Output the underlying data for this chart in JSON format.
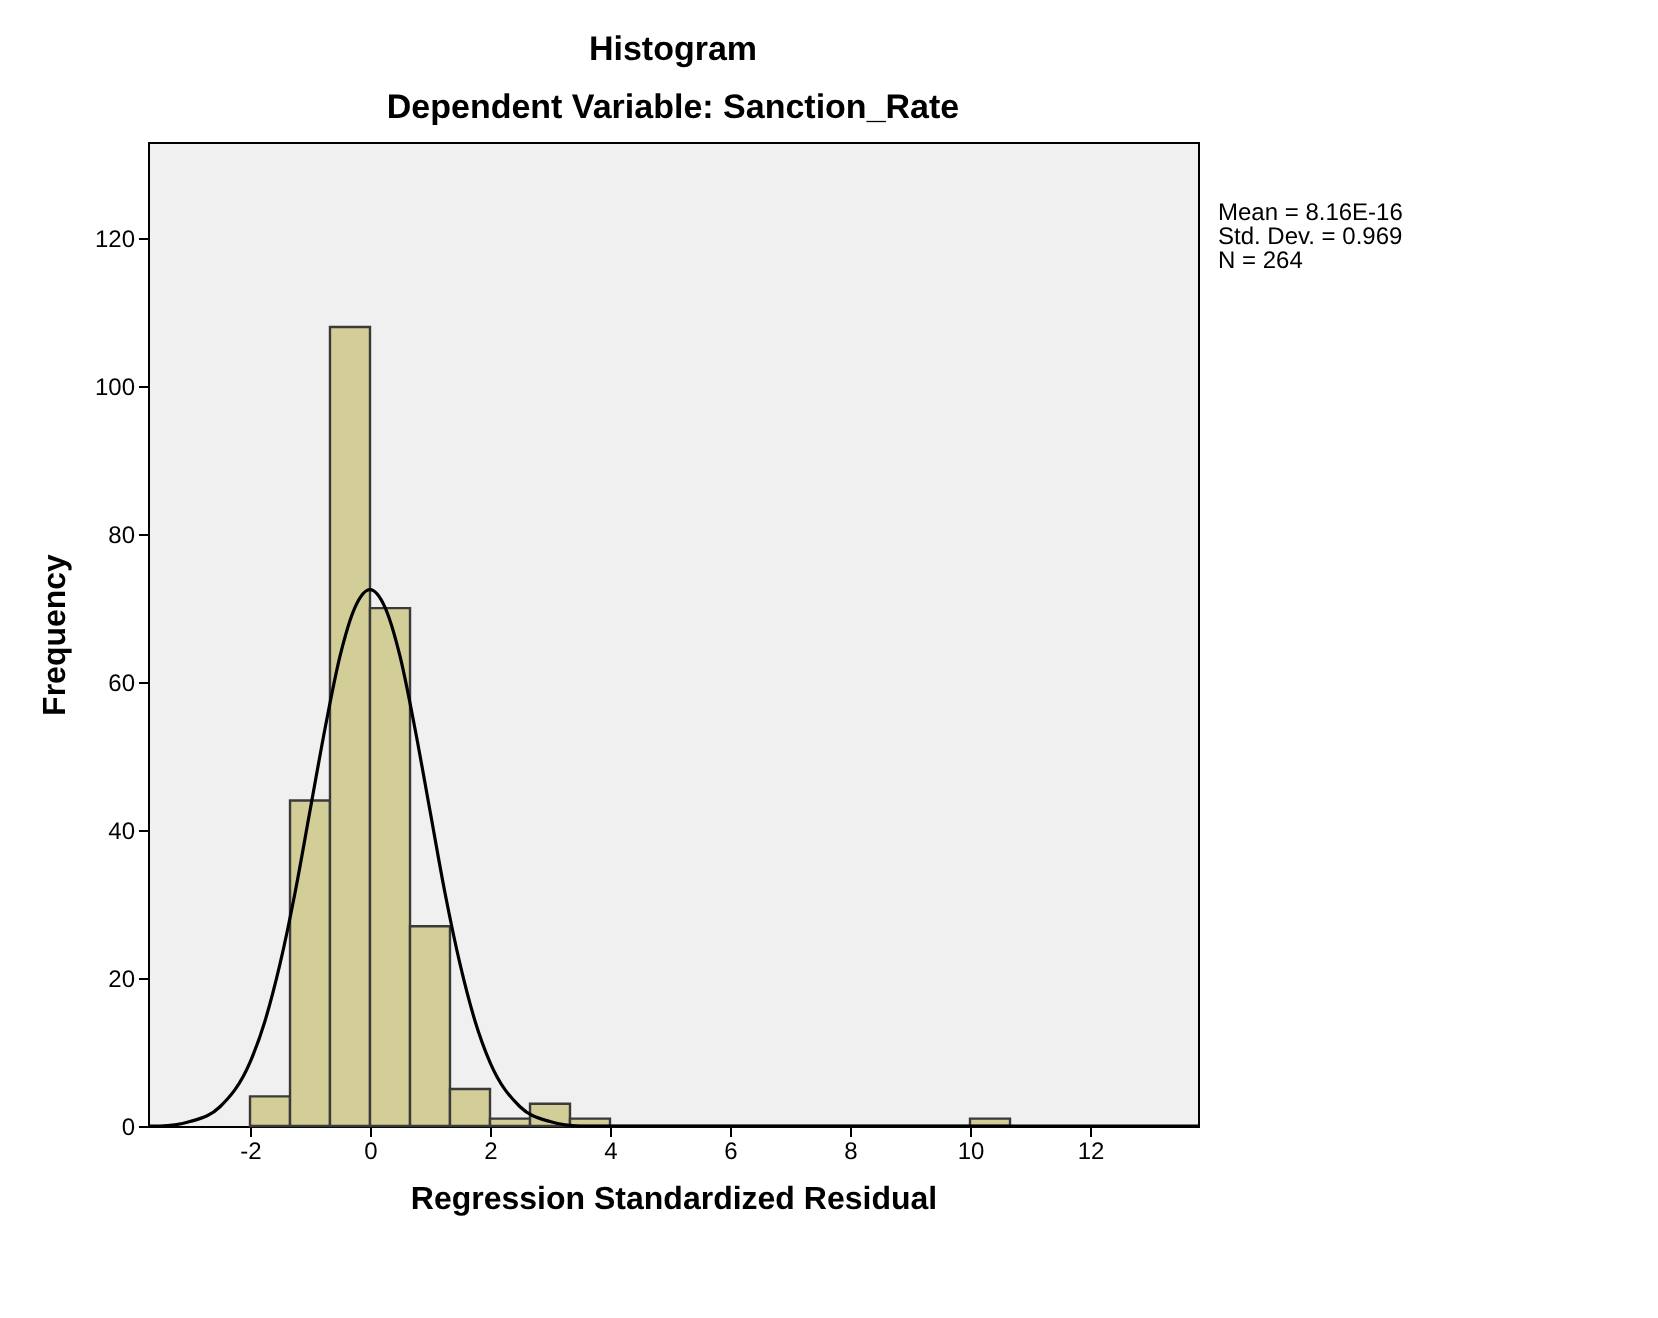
{
  "chart_data": {
    "type": "histogram",
    "title": "Histogram",
    "subtitle": "Dependent Variable: Sanction_Rate",
    "xlabel": "Regression Standardized Residual",
    "ylabel": "Frequency",
    "bins": [
      -2,
      -1.333,
      -0.667,
      0,
      0.667,
      1.333,
      2,
      2.667,
      3.333,
      4,
      4.667,
      5.333,
      6,
      6.667,
      7.333,
      8,
      8.667,
      9.333,
      10,
      10.667
    ],
    "values": [
      4,
      44,
      108,
      70,
      27,
      5,
      1,
      3,
      1,
      0,
      0,
      0,
      0,
      0,
      0,
      0,
      0,
      0,
      1
    ],
    "color": "#d3ce97",
    "series": [
      {
        "type": "line",
        "color": "#000000",
        "line_style": "solid",
        "x": [
          -3.7,
          -3.5,
          -3,
          -2.5,
          -2,
          -1.75,
          -1.5,
          -1.25,
          -1,
          -0.75,
          -0.5,
          -0.25,
          0,
          0.25,
          0.5,
          0.75,
          1,
          1.25,
          1.5,
          1.75,
          2,
          2.5,
          3,
          3.5,
          4,
          5,
          13.8
        ],
        "values": [
          0,
          0,
          0.6,
          2.6,
          8.6,
          14.2,
          21.9,
          31.5,
          42.6,
          53.7,
          63.5,
          70.1,
          72.5,
          70.1,
          63.5,
          53.7,
          42.6,
          31.5,
          21.9,
          14.2,
          8.6,
          2.6,
          0.6,
          0,
          0,
          0,
          0
        ]
      }
    ],
    "xlim": [
      -3.7,
      13.8
    ],
    "xticks": [
      -2,
      0,
      2,
      4,
      6,
      8,
      10,
      12
    ],
    "ylim": [
      0,
      133
    ],
    "yticks": [
      0,
      20,
      40,
      60,
      80,
      100,
      120
    ],
    "grid": false,
    "annotations": [
      "Mean = 8.16E-16",
      "Std. Dev. = 0.969",
      "N = 264"
    ]
  }
}
